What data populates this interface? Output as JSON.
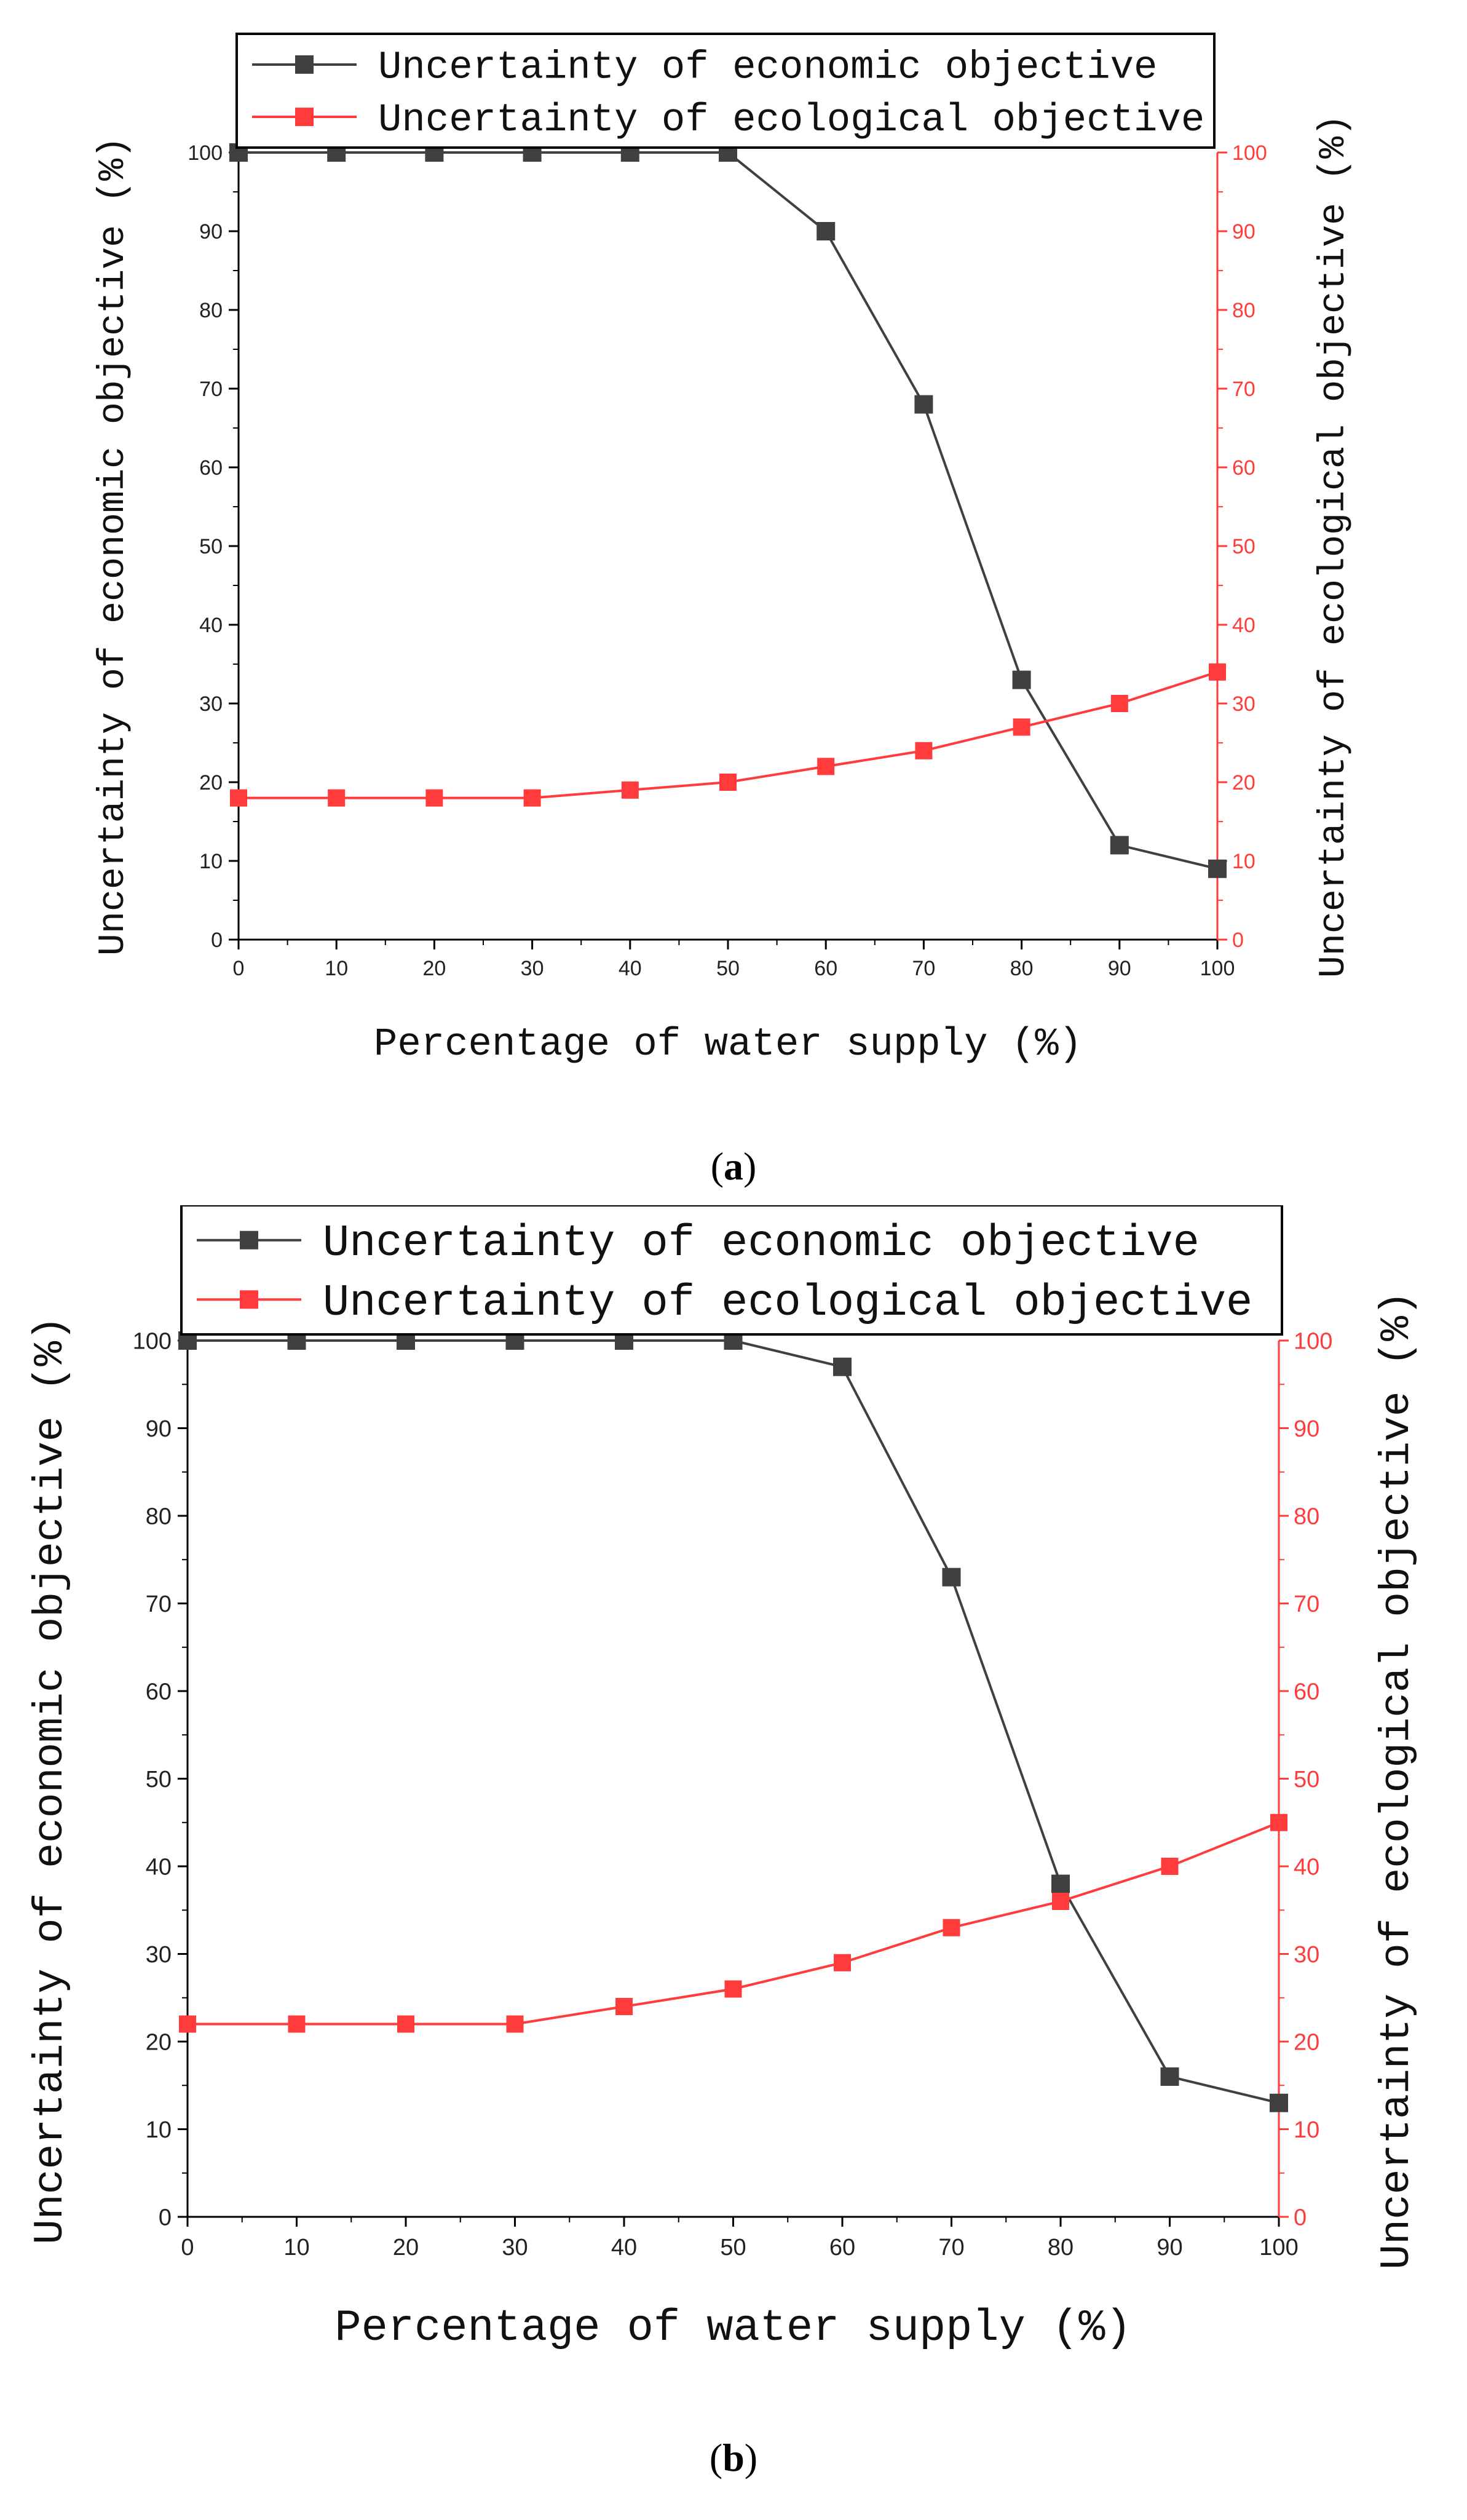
{
  "chart_data": [
    {
      "panel": "a",
      "type": "line",
      "caption": {
        "open": "(",
        "letter": "a",
        "close": ")"
      },
      "xlabel": "Percentage of water supply (%)",
      "ylabel_left": "Uncertainty of economic objective (%)",
      "ylabel_right": "Uncertainty of ecological objective (%)",
      "x": [
        0,
        10,
        20,
        30,
        40,
        50,
        60,
        70,
        80,
        90,
        100
      ],
      "xlim": [
        0,
        100
      ],
      "ylim": [
        0,
        100
      ],
      "xticks": [
        "0",
        "10",
        "20",
        "30",
        "40",
        "50",
        "60",
        "70",
        "80",
        "90",
        "100"
      ],
      "yticks": [
        "0",
        "10",
        "20",
        "30",
        "40",
        "50",
        "60",
        "70",
        "80",
        "90",
        "100"
      ],
      "legend_position": "top-left",
      "series": [
        {
          "name": "Uncertainty of economic objective",
          "axis": "left",
          "color": "#404040",
          "values": [
            100,
            100,
            100,
            100,
            100,
            100,
            90,
            68,
            33,
            12,
            9
          ]
        },
        {
          "name": "Uncertainty of ecological objective",
          "axis": "right",
          "color": "#ff3b3b",
          "values": [
            18,
            18,
            18,
            18,
            19,
            20,
            22,
            24,
            27,
            30,
            34
          ]
        }
      ]
    },
    {
      "panel": "b",
      "type": "line",
      "caption": {
        "open": "(",
        "letter": "b",
        "close": ")"
      },
      "xlabel": "Percentage of water supply (%)",
      "ylabel_left": "Uncertainty of economic objective (%)",
      "ylabel_right": "Uncertainty of ecological objective (%)",
      "x": [
        0,
        10,
        20,
        30,
        40,
        50,
        60,
        70,
        80,
        90,
        100
      ],
      "xlim": [
        0,
        100
      ],
      "ylim": [
        0,
        100
      ],
      "xticks": [
        "0",
        "10",
        "20",
        "30",
        "40",
        "50",
        "60",
        "70",
        "80",
        "90",
        "100"
      ],
      "yticks": [
        "0",
        "10",
        "20",
        "30",
        "40",
        "50",
        "60",
        "70",
        "80",
        "90",
        "100"
      ],
      "legend_position": "top-left",
      "series": [
        {
          "name": "Uncertainty of economic objective",
          "axis": "left",
          "color": "#404040",
          "values": [
            100,
            100,
            100,
            100,
            100,
            100,
            97,
            73,
            38,
            16,
            13
          ]
        },
        {
          "name": "Uncertainty of ecological objective",
          "axis": "right",
          "color": "#ff3b3b",
          "values": [
            22,
            22,
            22,
            22,
            24,
            26,
            29,
            33,
            36,
            40,
            45
          ]
        }
      ]
    }
  ],
  "colors": {
    "axis_right": "#ff3b3b",
    "axis_left": "#000000"
  }
}
